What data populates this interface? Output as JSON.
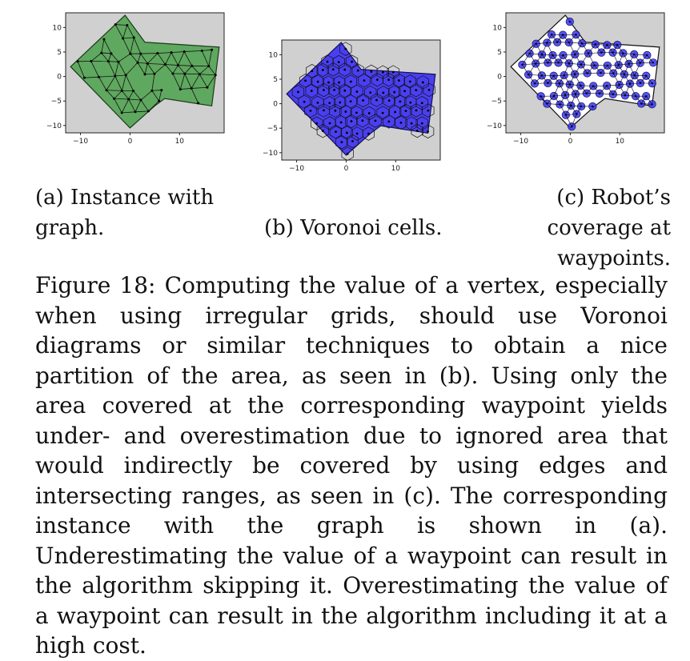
{
  "figure": {
    "panels": [
      {
        "id": "a",
        "subcaption": "(a) Instance with graph.",
        "fill": "#5fa85f",
        "edge": "#1a3a1a",
        "xticks": [
          "−10",
          "0",
          "10"
        ],
        "yticks": [
          "10",
          "5",
          "0",
          "−5",
          "−10"
        ]
      },
      {
        "id": "b",
        "subcaption": "(b) Voronoi cells.",
        "fill": "#4a3ff0",
        "edge": "#10105a",
        "xticks": [
          "−10",
          "0",
          "10"
        ],
        "yticks": [
          "10",
          "5",
          "0",
          "−5",
          "−10"
        ]
      },
      {
        "id": "c",
        "subcaption": "(c) Robot’s coverage at waypoints.",
        "fill": "#3a35f5",
        "edge": "#0a0a40",
        "xticks": [
          "−10",
          "0",
          "10"
        ],
        "yticks": [
          "10",
          "5",
          "0",
          "−5",
          "−10"
        ]
      }
    ],
    "caption": {
      "label": "Figure 18:",
      "text": "Computing the value of a vertex, especially when using irregular grids, should use Voronoi diagrams or similar techniques to obtain a nice partition of the area, as seen in (b). Using only the area covered at the corresponding waypoint yields under- and overestimation due to ignored area that would indirectly be covered by using edges and intersecting ranges, as seen in (c). The corresponding instance with the graph is shown in (a). Underestimating the value of a waypoint can result in the algorithm skipping it. Overestimating the value of a waypoint can result in the algorithm including it at a high cost."
    }
  }
}
